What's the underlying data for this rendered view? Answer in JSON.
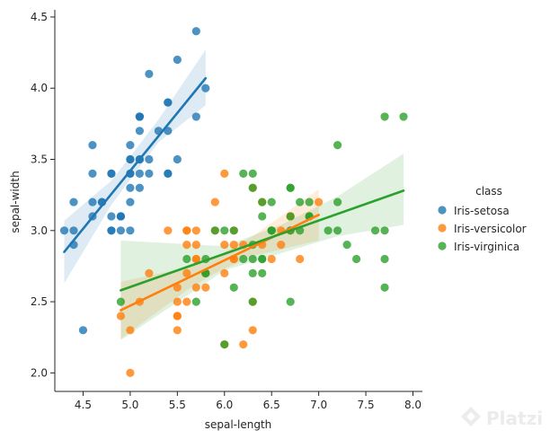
{
  "chart_data": {
    "type": "scatter",
    "title": "",
    "xlabel": "sepal-length",
    "ylabel": "sepal-width",
    "xlim": [
      4.2,
      8.1
    ],
    "ylim": [
      1.87,
      4.55
    ],
    "xticks": [
      "4.5",
      "5.0",
      "5.5",
      "6.0",
      "6.5",
      "7.0",
      "7.5",
      "8.0"
    ],
    "yticks": [
      "2.0",
      "2.5",
      "3.0",
      "3.5",
      "4.0",
      "4.5"
    ],
    "legend_title": "class",
    "legend_position": "right",
    "series": [
      {
        "name": "Iris-setosa",
        "color": "#1f77b4",
        "fit": {
          "x": [
            4.3,
            5.8
          ],
          "y": [
            2.85,
            4.07
          ]
        },
        "band": {
          "x": [
            4.3,
            4.8,
            5.0,
            5.3,
            5.8
          ],
          "lo": [
            2.63,
            3.18,
            3.36,
            3.62,
            3.88
          ],
          "hi": [
            3.07,
            3.35,
            3.52,
            3.78,
            4.27
          ]
        },
        "points": [
          [
            5.1,
            3.5
          ],
          [
            4.9,
            3.0
          ],
          [
            4.7,
            3.2
          ],
          [
            4.6,
            3.1
          ],
          [
            5.0,
            3.6
          ],
          [
            5.4,
            3.9
          ],
          [
            4.6,
            3.4
          ],
          [
            5.0,
            3.4
          ],
          [
            4.4,
            2.9
          ],
          [
            4.9,
            3.1
          ],
          [
            5.4,
            3.7
          ],
          [
            4.8,
            3.4
          ],
          [
            4.8,
            3.0
          ],
          [
            4.3,
            3.0
          ],
          [
            5.8,
            4.0
          ],
          [
            5.7,
            4.4
          ],
          [
            5.4,
            3.9
          ],
          [
            5.1,
            3.5
          ],
          [
            5.7,
            3.8
          ],
          [
            5.1,
            3.8
          ],
          [
            5.4,
            3.4
          ],
          [
            5.1,
            3.7
          ],
          [
            4.6,
            3.6
          ],
          [
            5.1,
            3.3
          ],
          [
            4.8,
            3.4
          ],
          [
            5.0,
            3.0
          ],
          [
            5.0,
            3.4
          ],
          [
            5.2,
            3.5
          ],
          [
            5.2,
            3.4
          ],
          [
            4.7,
            3.2
          ],
          [
            4.8,
            3.1
          ],
          [
            5.4,
            3.4
          ],
          [
            5.2,
            4.1
          ],
          [
            5.5,
            4.2
          ],
          [
            4.9,
            3.1
          ],
          [
            5.0,
            3.2
          ],
          [
            5.5,
            3.5
          ],
          [
            4.9,
            3.1
          ],
          [
            4.4,
            3.0
          ],
          [
            5.1,
            3.4
          ],
          [
            5.0,
            3.5
          ],
          [
            4.5,
            2.3
          ],
          [
            4.4,
            3.2
          ],
          [
            5.0,
            3.5
          ],
          [
            5.1,
            3.8
          ],
          [
            4.8,
            3.0
          ],
          [
            5.1,
            3.8
          ],
          [
            4.6,
            3.2
          ],
          [
            5.3,
            3.7
          ],
          [
            5.0,
            3.3
          ]
        ]
      },
      {
        "name": "Iris-versicolor",
        "color": "#ff7f0e",
        "fit": {
          "x": [
            4.9,
            7.0
          ],
          "y": [
            2.44,
            3.11
          ]
        },
        "band": {
          "x": [
            4.9,
            5.6,
            5.9,
            6.3,
            7.0
          ],
          "lo": [
            2.24,
            2.58,
            2.7,
            2.82,
            2.93
          ],
          "hi": [
            2.64,
            2.74,
            2.81,
            2.96,
            3.29
          ]
        },
        "points": [
          [
            7.0,
            3.2
          ],
          [
            6.4,
            3.2
          ],
          [
            6.9,
            3.1
          ],
          [
            5.5,
            2.3
          ],
          [
            6.5,
            2.8
          ],
          [
            5.7,
            2.8
          ],
          [
            6.3,
            3.3
          ],
          [
            4.9,
            2.4
          ],
          [
            6.6,
            2.9
          ],
          [
            5.2,
            2.7
          ],
          [
            5.0,
            2.0
          ],
          [
            5.9,
            3.0
          ],
          [
            6.0,
            2.2
          ],
          [
            6.1,
            2.9
          ],
          [
            5.6,
            2.9
          ],
          [
            6.7,
            3.1
          ],
          [
            5.6,
            3.0
          ],
          [
            5.8,
            2.7
          ],
          [
            6.2,
            2.2
          ],
          [
            5.6,
            2.5
          ],
          [
            5.9,
            3.2
          ],
          [
            6.1,
            2.8
          ],
          [
            6.3,
            2.5
          ],
          [
            6.1,
            2.8
          ],
          [
            6.4,
            2.9
          ],
          [
            6.6,
            3.0
          ],
          [
            6.8,
            2.8
          ],
          [
            6.7,
            3.0
          ],
          [
            6.0,
            2.9
          ],
          [
            5.7,
            2.6
          ],
          [
            5.5,
            2.4
          ],
          [
            5.5,
            2.4
          ],
          [
            5.8,
            2.7
          ],
          [
            6.0,
            2.7
          ],
          [
            5.4,
            3.0
          ],
          [
            6.0,
            3.4
          ],
          [
            6.7,
            3.1
          ],
          [
            6.3,
            2.3
          ],
          [
            5.6,
            3.0
          ],
          [
            5.5,
            2.5
          ],
          [
            5.5,
            2.6
          ],
          [
            6.1,
            3.0
          ],
          [
            5.8,
            2.6
          ],
          [
            5.0,
            2.3
          ],
          [
            5.6,
            2.7
          ],
          [
            5.7,
            3.0
          ],
          [
            5.7,
            2.9
          ],
          [
            6.2,
            2.9
          ],
          [
            5.1,
            2.5
          ],
          [
            5.7,
            2.8
          ]
        ]
      },
      {
        "name": "Iris-virginica",
        "color": "#2ca02c",
        "fit": {
          "x": [
            4.9,
            7.9
          ],
          "y": [
            2.58,
            3.28
          ]
        },
        "band": {
          "x": [
            4.9,
            6.0,
            6.6,
            7.2,
            7.9
          ],
          "lo": [
            2.23,
            2.72,
            2.84,
            2.96,
            3.04
          ],
          "hi": [
            2.93,
            2.89,
            3.04,
            3.24,
            3.54
          ]
        },
        "points": [
          [
            6.3,
            3.3
          ],
          [
            5.8,
            2.7
          ],
          [
            7.1,
            3.0
          ],
          [
            6.3,
            2.9
          ],
          [
            6.5,
            3.0
          ],
          [
            7.6,
            3.0
          ],
          [
            4.9,
            2.5
          ],
          [
            7.3,
            2.9
          ],
          [
            6.7,
            2.5
          ],
          [
            7.2,
            3.6
          ],
          [
            6.5,
            3.2
          ],
          [
            6.4,
            2.7
          ],
          [
            6.8,
            3.0
          ],
          [
            5.7,
            2.5
          ],
          [
            5.8,
            2.8
          ],
          [
            6.4,
            3.2
          ],
          [
            6.5,
            3.0
          ],
          [
            7.7,
            3.8
          ],
          [
            7.7,
            2.6
          ],
          [
            6.0,
            2.2
          ],
          [
            6.9,
            3.2
          ],
          [
            5.6,
            2.8
          ],
          [
            7.7,
            2.8
          ],
          [
            6.3,
            2.7
          ],
          [
            6.7,
            3.3
          ],
          [
            7.2,
            3.2
          ],
          [
            6.2,
            2.8
          ],
          [
            6.1,
            3.0
          ],
          [
            6.4,
            2.8
          ],
          [
            7.2,
            3.0
          ],
          [
            7.4,
            2.8
          ],
          [
            7.9,
            3.8
          ],
          [
            6.4,
            2.8
          ],
          [
            6.3,
            2.8
          ],
          [
            6.1,
            2.6
          ],
          [
            7.7,
            3.0
          ],
          [
            6.3,
            3.4
          ],
          [
            6.4,
            3.1
          ],
          [
            6.0,
            3.0
          ],
          [
            6.9,
            3.1
          ],
          [
            6.7,
            3.1
          ],
          [
            6.9,
            3.1
          ],
          [
            5.8,
            2.7
          ],
          [
            6.8,
            3.2
          ],
          [
            6.7,
            3.3
          ],
          [
            6.7,
            3.0
          ],
          [
            6.3,
            2.5
          ],
          [
            6.5,
            3.0
          ],
          [
            6.2,
            3.4
          ],
          [
            5.9,
            3.0
          ]
        ]
      }
    ]
  },
  "watermark": {
    "text": "Platzi"
  }
}
